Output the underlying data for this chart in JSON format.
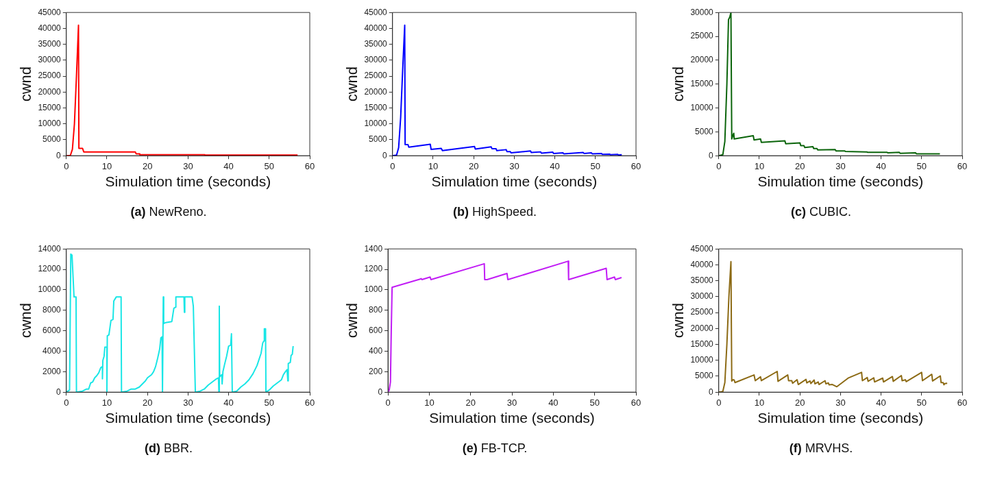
{
  "chart_data": [
    {
      "type": "line",
      "title": "(a) NewReno.",
      "xlabel": "Simulation time (seconds)",
      "ylabel": "cwnd",
      "xlim": [
        0,
        60
      ],
      "xticks": [
        0,
        10,
        20,
        30,
        40,
        50,
        60
      ],
      "ylim": [
        0,
        45000
      ],
      "yticks": [
        0,
        5000,
        10000,
        15000,
        20000,
        25000,
        30000,
        35000,
        40000,
        45000
      ],
      "marker": "none",
      "line_style": "solid",
      "legend": false,
      "series": [
        {
          "color": "#ff0000",
          "x": [
            0,
            1,
            1.5,
            2,
            2.5,
            3,
            3.1,
            4,
            4.3,
            17,
            17.2,
            18,
            18.1,
            34,
            34.1,
            57
          ],
          "values": [
            0,
            100,
            2000,
            10000,
            25000,
            41000,
            2300,
            2300,
            1200,
            1200,
            600,
            600,
            300,
            300,
            200,
            200
          ]
        }
      ]
    },
    {
      "type": "line",
      "title": "(b) HighSpeed.",
      "xlabel": "Simulation time (seconds)",
      "ylabel": "cwnd",
      "xlim": [
        0,
        60
      ],
      "xticks": [
        0,
        10,
        20,
        30,
        40,
        50,
        60
      ],
      "ylim": [
        0,
        45000
      ],
      "yticks": [
        0,
        5000,
        10000,
        15000,
        20000,
        25000,
        30000,
        35000,
        40000,
        45000
      ],
      "marker": "none",
      "line_style": "solid",
      "legend": false,
      "series": [
        {
          "color": "#0000ff",
          "x": [
            0,
            1,
            1.5,
            2,
            2.5,
            3,
            3.1,
            3.8,
            4,
            9.3,
            9.5,
            12,
            12.3,
            20.2,
            20.4,
            24.3,
            24.5,
            25.5,
            25.7,
            28,
            28.2,
            29,
            29.2,
            34,
            34.2,
            36.5,
            36.7,
            39.5,
            39.7,
            42,
            42.2,
            47,
            47.2,
            49,
            49.2,
            51.5,
            51.7,
            53.5,
            53.7,
            55.5,
            55.7,
            56.5
          ],
          "values": [
            0,
            200,
            2500,
            12000,
            27000,
            41000,
            3500,
            3500,
            2700,
            3600,
            2000,
            2300,
            1600,
            2900,
            2100,
            2800,
            2200,
            2200,
            1600,
            1900,
            1300,
            1300,
            900,
            1500,
            1000,
            1200,
            800,
            1100,
            700,
            900,
            600,
            1000,
            700,
            900,
            600,
            700,
            400,
            500,
            300,
            400,
            200,
            300
          ]
        }
      ]
    },
    {
      "type": "line",
      "title": "(c) CUBIC.",
      "xlabel": "Simulation time (seconds)",
      "ylabel": "cwnd",
      "xlim": [
        0,
        60
      ],
      "xticks": [
        0,
        10,
        20,
        30,
        40,
        50,
        60
      ],
      "ylim": [
        0,
        30000
      ],
      "yticks": [
        0,
        5000,
        10000,
        15000,
        20000,
        25000,
        30000
      ],
      "marker": "none",
      "line_style": "solid",
      "legend": false,
      "series": [
        {
          "color": "#0a640a",
          "x": [
            0,
            1,
            1.5,
            2,
            2.4,
            2.7,
            3,
            3.2,
            3.5,
            3.7,
            3.8,
            8.5,
            8.7,
            10.3,
            10.5,
            16.3,
            16.5,
            20,
            20.2,
            21,
            21.2,
            23.2,
            23.4,
            24.2,
            24.4,
            28.7,
            28.9,
            31,
            31.2,
            36.5,
            36.7,
            41.5,
            41.7,
            44.5,
            44.7,
            48.5,
            48.7,
            51,
            51.2,
            54.5
          ],
          "values": [
            0,
            200,
            3000,
            15000,
            28500,
            29000,
            30000,
            3500,
            4300,
            4700,
            3500,
            4200,
            3300,
            3500,
            2800,
            3100,
            2500,
            2700,
            2100,
            2100,
            1700,
            1900,
            1500,
            1500,
            1200,
            1300,
            1000,
            1000,
            900,
            800,
            700,
            700,
            600,
            700,
            500,
            600,
            400,
            400,
            400,
            400
          ]
        }
      ]
    },
    {
      "type": "line",
      "title": "(d) BBR.",
      "xlabel": "Simulation time (seconds)",
      "ylabel": "cwnd",
      "xlim": [
        0,
        60
      ],
      "xticks": [
        0,
        10,
        20,
        30,
        40,
        50,
        60
      ],
      "ylim": [
        0,
        14000
      ],
      "yticks": [
        0,
        2000,
        4000,
        6000,
        8000,
        10000,
        12000,
        14000
      ],
      "marker": "none",
      "line_style": "solid",
      "legend": false,
      "series": [
        {
          "color": "#19e6e6",
          "x": [
            0,
            0.8,
            1.1,
            1.4,
            1.9,
            2.4,
            2.5,
            4,
            5,
            5.5,
            6,
            6.5,
            7,
            7.5,
            8,
            8.5,
            8.9,
            8.9,
            9,
            9.3,
            9.5,
            10,
            10,
            10.1,
            10.5,
            11,
            11.5,
            11.7,
            12.3,
            13.5,
            13.6,
            15,
            16,
            17,
            18,
            18.5,
            19,
            19.5,
            20,
            21,
            21.5,
            22,
            22.5,
            23,
            23.3,
            23.6,
            23.7,
            23.9,
            24,
            24.5,
            26,
            26.5,
            26.9,
            27,
            29,
            29.1,
            29.2,
            31,
            31.3,
            31.8,
            33,
            34,
            35,
            36,
            37,
            37.5,
            37.6,
            37.7,
            37.8,
            38.3,
            38.4,
            38.6,
            39,
            39.5,
            40,
            40.5,
            40.7,
            40.9,
            42,
            43,
            44,
            45,
            46,
            47,
            48,
            48.4,
            48.7,
            48.8,
            49.1,
            49.2,
            50,
            51,
            52,
            53,
            53.5,
            54,
            54.4,
            54.6,
            54.7,
            55.2,
            55.4,
            55.7,
            55.9
          ],
          "values": [
            0,
            200,
            13500,
            13400,
            9300,
            9300,
            0,
            100,
            300,
            300,
            900,
            1000,
            1400,
            1600,
            1900,
            2400,
            2500,
            1300,
            3100,
            3500,
            4400,
            4400,
            0,
            5500,
            5600,
            7000,
            7100,
            8900,
            9300,
            9300,
            0,
            100,
            300,
            300,
            500,
            700,
            900,
            1100,
            1400,
            1700,
            2000,
            2500,
            3300,
            4200,
            5300,
            5400,
            0,
            9300,
            6700,
            6800,
            6900,
            8200,
            8300,
            9300,
            9300,
            7800,
            9300,
            9300,
            8400,
            0,
            100,
            300,
            700,
            1000,
            1300,
            1400,
            0,
            8400,
            1500,
            1700,
            800,
            2000,
            2700,
            3500,
            4500,
            4600,
            5700,
            0,
            100,
            500,
            800,
            1200,
            1800,
            2600,
            3800,
            4800,
            5000,
            6200,
            6200,
            0,
            200,
            600,
            900,
            1200,
            1700,
            2000,
            2200,
            1100,
            2800,
            2900,
            3600,
            3700,
            4500
          ]
        }
      ]
    },
    {
      "type": "line",
      "title": "(e) FB-TCP.",
      "xlabel": "Simulation time (seconds)",
      "ylabel": "cwnd",
      "xlim": [
        0,
        60
      ],
      "xticks": [
        0,
        10,
        20,
        30,
        40,
        50,
        60
      ],
      "ylim": [
        0,
        1400
      ],
      "yticks": [
        0,
        200,
        400,
        600,
        800,
        1000,
        1200,
        1400
      ],
      "marker": "none",
      "line_style": "solid",
      "legend": false,
      "series": [
        {
          "color": "#c11cf5",
          "x": [
            0,
            0.3,
            0.6,
            0.8,
            1,
            7.8,
            8,
            8.2,
            10.2,
            10.4,
            23.3,
            23.4,
            24,
            28.8,
            29,
            43.6,
            43.7,
            52.8,
            53,
            54.8,
            55,
            56.5
          ],
          "values": [
            0,
            20,
            100,
            600,
            1025,
            1105,
            1110,
            1100,
            1125,
            1100,
            1255,
            1100,
            1100,
            1160,
            1100,
            1280,
            1100,
            1210,
            1100,
            1125,
            1100,
            1120
          ]
        }
      ]
    },
    {
      "type": "line",
      "title": "(f) MRVHS.",
      "xlabel": "Simulation time (seconds)",
      "ylabel": "cwnd",
      "xlim": [
        0,
        60
      ],
      "xticks": [
        0,
        10,
        20,
        30,
        40,
        50,
        60
      ],
      "ylim": [
        0,
        45000
      ],
      "yticks": [
        0,
        5000,
        10000,
        15000,
        20000,
        25000,
        30000,
        35000,
        40000,
        45000
      ],
      "marker": "none",
      "line_style": "solid",
      "legend": false,
      "series": [
        {
          "color": "#8c6a14",
          "x": [
            0,
            1,
            1.5,
            2,
            2.5,
            3,
            3.2,
            3.5,
            3.8,
            4,
            8.7,
            9,
            10.3,
            10.5,
            14.4,
            14.6,
            17,
            17.2,
            18,
            18.2,
            19.3,
            19.6,
            21.5,
            21.7,
            22.5,
            22.7,
            23.5,
            23.7,
            24.5,
            24.7,
            26.2,
            26.4,
            27,
            27.2,
            28,
            29.1,
            32,
            35.2,
            35.4,
            36.6,
            36.8,
            38.2,
            38.4,
            40.4,
            40.6,
            42.8,
            43,
            45,
            45.2,
            46,
            46.2,
            50,
            50.2,
            52.5,
            52.7,
            54.6,
            54.8,
            55.3,
            55.5,
            55.7,
            56.3
          ],
          "values": [
            0,
            200,
            3000,
            15000,
            30000,
            41000,
            3500,
            3900,
            3800,
            3000,
            5400,
            3600,
            4800,
            3600,
            6500,
            3400,
            5400,
            3600,
            3600,
            2800,
            3900,
            2400,
            4000,
            2900,
            3500,
            2700,
            3800,
            2600,
            3200,
            2400,
            3600,
            2600,
            2900,
            2300,
            2400,
            1700,
            4500,
            6200,
            3600,
            4600,
            3400,
            4500,
            3200,
            4400,
            3200,
            4900,
            3400,
            5200,
            3600,
            3900,
            3300,
            6200,
            3600,
            5600,
            3500,
            5100,
            3000,
            3000,
            2300,
            2700,
            2800
          ]
        }
      ]
    }
  ]
}
